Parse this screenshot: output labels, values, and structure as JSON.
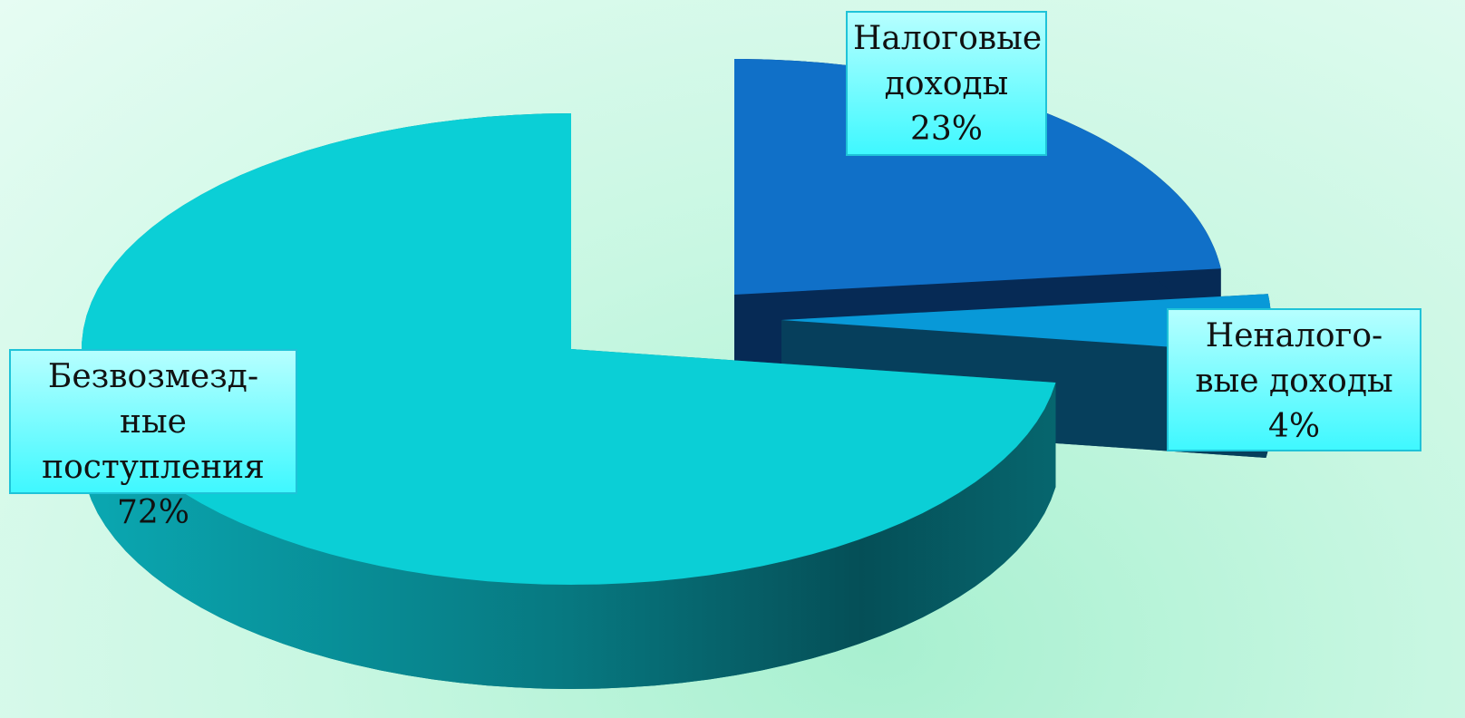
{
  "chart_data": {
    "type": "pie",
    "categories": [
      "Налоговые доходы",
      "Неналого-вые доходы",
      "Безвозмезд-ные поступления"
    ],
    "values": [
      23,
      4,
      72
    ],
    "value_labels": [
      "23%",
      "4%",
      "72%"
    ],
    "colors": [
      "#1070c8",
      "#0899d8",
      "#0bcfd6"
    ],
    "side_colors": [
      "#062a55",
      "#063f5c",
      "#067a84"
    ]
  }
}
